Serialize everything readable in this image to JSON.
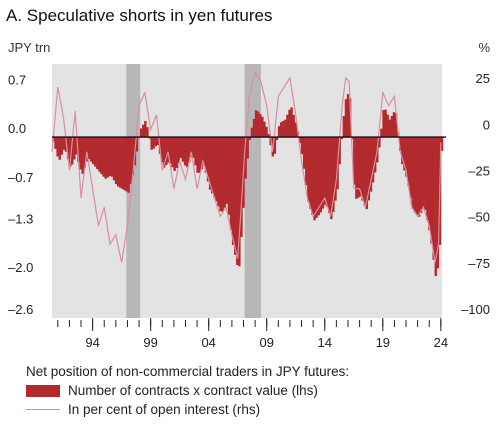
{
  "chart_data": {
    "type": "area",
    "title": "A. Speculative shorts in yen futures",
    "y_left_label": "JPY trn",
    "y_right_label": "%",
    "y_left_ticks": [
      0.7,
      0.0,
      -0.7,
      -1.3,
      -2.0,
      -2.6
    ],
    "y_left_tick_labels": [
      "0.7",
      "0.0",
      "–0.7",
      "–1.3",
      "–2.0",
      "–2.6"
    ],
    "y_right_ticks": [
      25,
      0,
      -25,
      -50,
      -75,
      -100
    ],
    "y_right_tick_labels": [
      "25",
      "0",
      "–25",
      "–50",
      "–75",
      "–100"
    ],
    "y_left_lim": [
      -2.6,
      1.05
    ],
    "y_right_lim": [
      -100,
      37.5
    ],
    "x_lim": [
      1991.0,
      2024.6
    ],
    "x_tick_labels": [
      {
        "year": 1994,
        "label": "94"
      },
      {
        "year": 1999,
        "label": "99"
      },
      {
        "year": 2004,
        "label": "04"
      },
      {
        "year": 2009,
        "label": "09"
      },
      {
        "year": 2014,
        "label": "14"
      },
      {
        "year": 2019,
        "label": "19"
      },
      {
        "year": 2024,
        "label": "24"
      }
    ],
    "shaded_periods": [
      [
        1997.4,
        1998.6
      ],
      [
        2007.6,
        2009.0
      ]
    ],
    "legend_title": "Net position of non-commercial traders in JPY futures:",
    "series": [
      {
        "name": "Number of contracts x contract value (lhs)",
        "axis": "left",
        "style": "area",
        "color": "#b22a2e",
        "points": [
          [
            1991.0,
            -0.05
          ],
          [
            1991.5,
            -0.35
          ],
          [
            1992.0,
            -0.15
          ],
          [
            1992.5,
            -0.45
          ],
          [
            1993.0,
            -0.25
          ],
          [
            1993.5,
            -0.55
          ],
          [
            1994.0,
            -0.3
          ],
          [
            1994.5,
            -0.4
          ],
          [
            1995.0,
            -0.5
          ],
          [
            1995.5,
            -0.6
          ],
          [
            1996.0,
            -0.55
          ],
          [
            1996.5,
            -0.7
          ],
          [
            1997.0,
            -0.75
          ],
          [
            1997.5,
            -0.8
          ],
          [
            1998.0,
            -0.45
          ],
          [
            1998.5,
            0.1
          ],
          [
            1999.0,
            0.25
          ],
          [
            1999.5,
            -0.2
          ],
          [
            2000.0,
            -0.1
          ],
          [
            2000.5,
            -0.45
          ],
          [
            2001.0,
            -0.35
          ],
          [
            2001.5,
            -0.5
          ],
          [
            2002.0,
            -0.3
          ],
          [
            2002.5,
            -0.45
          ],
          [
            2003.0,
            -0.25
          ],
          [
            2003.5,
            -0.55
          ],
          [
            2004.0,
            -0.4
          ],
          [
            2004.5,
            -0.75
          ],
          [
            2005.0,
            -0.9
          ],
          [
            2005.5,
            -1.1
          ],
          [
            2006.0,
            -0.95
          ],
          [
            2006.5,
            -1.55
          ],
          [
            2007.0,
            -1.95
          ],
          [
            2007.3,
            -1.25
          ],
          [
            2007.6,
            -0.55
          ],
          [
            2008.0,
            0.05
          ],
          [
            2008.5,
            0.4
          ],
          [
            2009.0,
            0.3
          ],
          [
            2009.5,
            0.1
          ],
          [
            2010.0,
            -0.35
          ],
          [
            2010.5,
            0.2
          ],
          [
            2011.0,
            0.25
          ],
          [
            2011.5,
            0.45
          ],
          [
            2012.0,
            0.15
          ],
          [
            2012.5,
            -0.3
          ],
          [
            2013.0,
            -0.95
          ],
          [
            2013.5,
            -1.2
          ],
          [
            2014.0,
            -1.1
          ],
          [
            2014.5,
            -0.95
          ],
          [
            2015.0,
            -1.2
          ],
          [
            2015.5,
            -0.75
          ],
          [
            2016.0,
            0.25
          ],
          [
            2016.3,
            0.65
          ],
          [
            2016.6,
            0.55
          ],
          [
            2017.0,
            -0.9
          ],
          [
            2017.5,
            -0.85
          ],
          [
            2018.0,
            -1.05
          ],
          [
            2018.5,
            -0.7
          ],
          [
            2019.0,
            -0.3
          ],
          [
            2019.5,
            0.45
          ],
          [
            2020.0,
            0.25
          ],
          [
            2020.5,
            0.4
          ],
          [
            2021.0,
            -0.35
          ],
          [
            2021.5,
            -0.6
          ],
          [
            2022.0,
            -1.05
          ],
          [
            2022.5,
            -1.15
          ],
          [
            2023.0,
            -1.0
          ],
          [
            2023.5,
            -1.4
          ],
          [
            2024.0,
            -2.05
          ],
          [
            2024.3,
            -1.7
          ],
          [
            2024.5,
            -0.2
          ]
        ]
      },
      {
        "name": "In per cent of open interest (rhs)",
        "axis": "right",
        "style": "line",
        "color": "#d98fa0",
        "points": [
          [
            1991.0,
            -10
          ],
          [
            1991.5,
            25
          ],
          [
            1992.0,
            8
          ],
          [
            1992.5,
            -20
          ],
          [
            1993.0,
            12
          ],
          [
            1993.5,
            -35
          ],
          [
            1994.0,
            -10
          ],
          [
            1994.5,
            -30
          ],
          [
            1995.0,
            -50
          ],
          [
            1995.5,
            -40
          ],
          [
            1996.0,
            -60
          ],
          [
            1996.5,
            -55
          ],
          [
            1997.0,
            -70
          ],
          [
            1997.5,
            -50
          ],
          [
            1998.0,
            -20
          ],
          [
            1998.5,
            15
          ],
          [
            1999.0,
            22
          ],
          [
            1999.5,
            2
          ],
          [
            2000.0,
            10
          ],
          [
            2000.5,
            -20
          ],
          [
            2001.0,
            -10
          ],
          [
            2001.5,
            -30
          ],
          [
            2002.0,
            -15
          ],
          [
            2002.5,
            -25
          ],
          [
            2003.0,
            -10
          ],
          [
            2003.5,
            -30
          ],
          [
            2004.0,
            -15
          ],
          [
            2004.5,
            -25
          ],
          [
            2005.0,
            -35
          ],
          [
            2005.5,
            -45
          ],
          [
            2006.0,
            -40
          ],
          [
            2006.5,
            -55
          ],
          [
            2007.0,
            -68
          ],
          [
            2007.3,
            -40
          ],
          [
            2007.6,
            -10
          ],
          [
            2008.0,
            20
          ],
          [
            2008.5,
            33
          ],
          [
            2009.0,
            28
          ],
          [
            2009.5,
            15
          ],
          [
            2010.0,
            -10
          ],
          [
            2010.5,
            20
          ],
          [
            2011.0,
            25
          ],
          [
            2011.5,
            30
          ],
          [
            2012.0,
            10
          ],
          [
            2012.5,
            -15
          ],
          [
            2013.0,
            -35
          ],
          [
            2013.5,
            -45
          ],
          [
            2014.0,
            -40
          ],
          [
            2014.5,
            -35
          ],
          [
            2015.0,
            -45
          ],
          [
            2015.5,
            -25
          ],
          [
            2016.0,
            15
          ],
          [
            2016.3,
            30
          ],
          [
            2016.6,
            28
          ],
          [
            2017.0,
            -30
          ],
          [
            2017.5,
            -30
          ],
          [
            2018.0,
            -40
          ],
          [
            2018.5,
            -25
          ],
          [
            2019.0,
            -10
          ],
          [
            2019.5,
            22
          ],
          [
            2020.0,
            15
          ],
          [
            2020.5,
            20
          ],
          [
            2021.0,
            -10
          ],
          [
            2021.5,
            -20
          ],
          [
            2022.0,
            -40
          ],
          [
            2022.5,
            -45
          ],
          [
            2023.0,
            -40
          ],
          [
            2023.5,
            -50
          ],
          [
            2024.0,
            -70
          ],
          [
            2024.3,
            -60
          ],
          [
            2024.5,
            -5
          ]
        ]
      }
    ]
  }
}
